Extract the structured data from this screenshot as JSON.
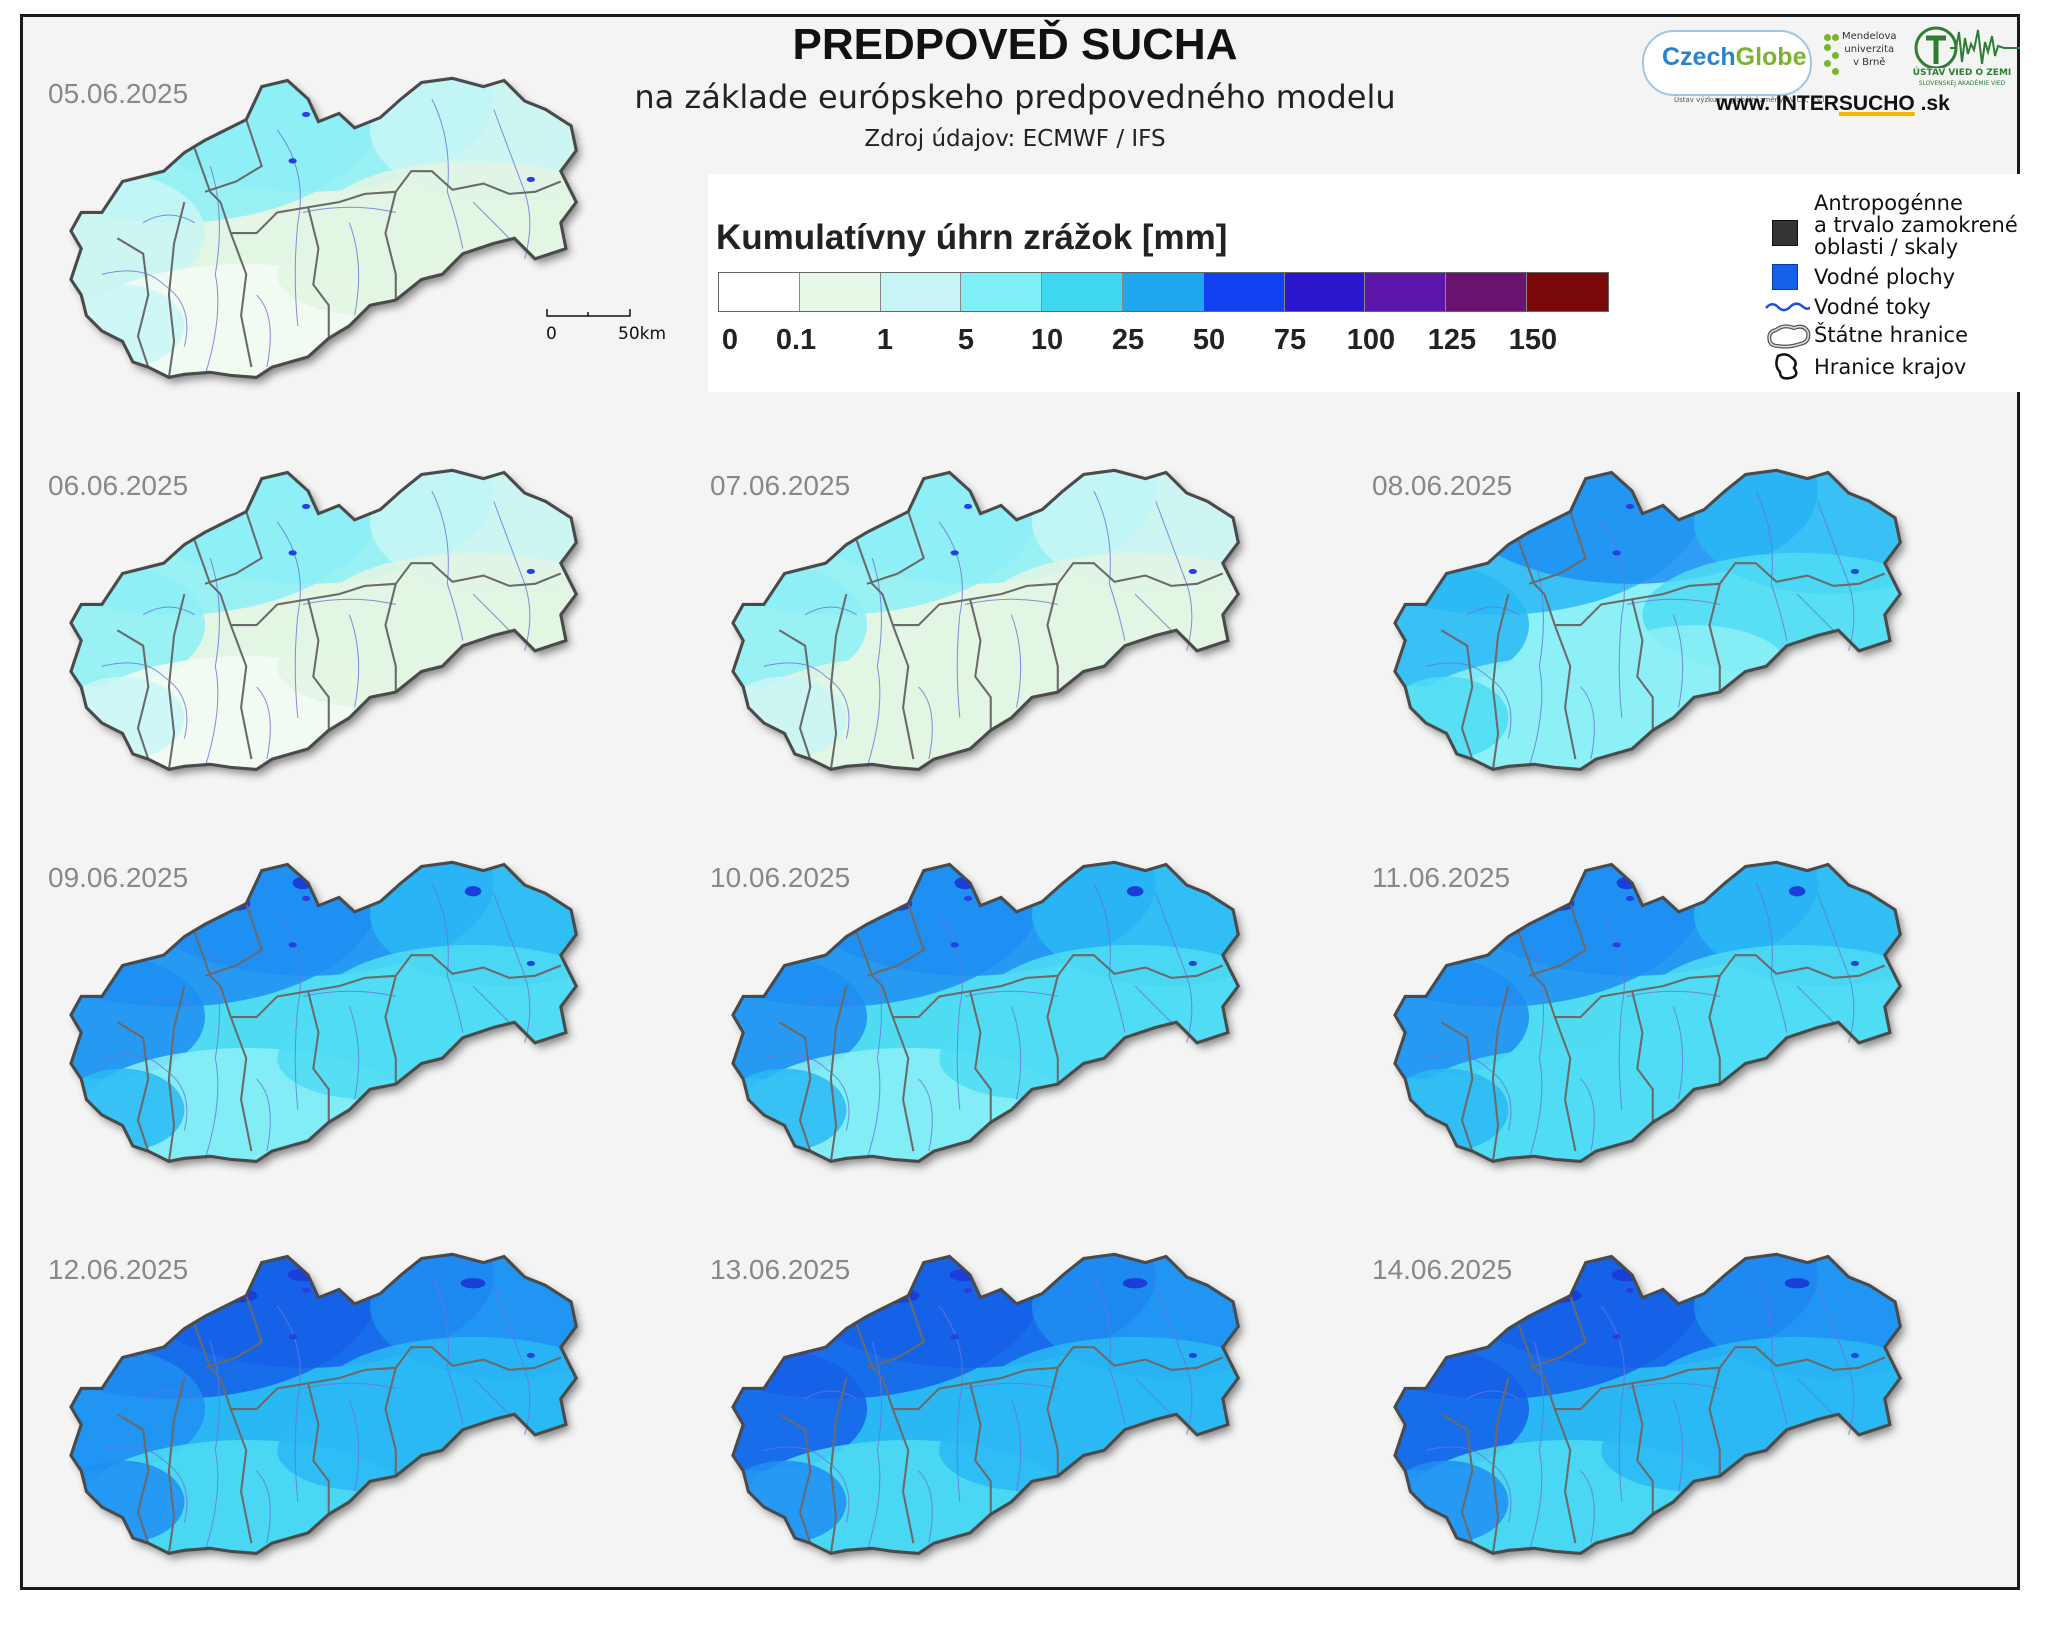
{
  "header": {
    "title": "PREDPOVEĎ SUCHA",
    "subtitle": "na základe európskeho predpovedného modelu",
    "source": "Zdroj údajov: ECMWF / IFS"
  },
  "logos": {
    "czechglobe_a": "Czech",
    "czechglobe_b": "Globe",
    "czechglobe_small": "Ústav výzkumu globální změny AV ČR, v.v.i.",
    "mendel": [
      "Mendelova",
      "univerzita",
      "v Brně"
    ],
    "uvz_name": "ÚSTAV VIED O ZEMI",
    "uvz_sub": "SLOVENSKEJ AKADÉMIE VIED",
    "web_prefix": "www. INTER",
    "web_hl": "SUCHO",
    "web_suffix": " .sk"
  },
  "legend": {
    "title": "Kumulatívny úhrn zrážok [mm]",
    "colors": [
      "#ffffff",
      "#e6f7e6",
      "#c8f6f6",
      "#7ff0f5",
      "#3fd6f0",
      "#1fa8f0",
      "#1040f0",
      "#2a16cc",
      "#5a16a8",
      "#6a1270",
      "#7a0808"
    ],
    "ticks": [
      "0",
      "0.1",
      "1",
      "5",
      "10",
      "25",
      "50",
      "75",
      "100",
      "125",
      "150"
    ]
  },
  "symbols": {
    "anthro": [
      "Antropogénne",
      "a trvalo zamokrené",
      "oblasti / skaly"
    ],
    "water_bodies": "Vodné plochy",
    "rivers": "Vodné toky",
    "state_border": "Štátne hranice",
    "region_border": "Hranice krajov"
  },
  "scale": {
    "start": "0",
    "end": "50km"
  },
  "maps": [
    {
      "date": "05.06.2025",
      "intensity": 0.1
    },
    {
      "date": "06.06.2025",
      "intensity": 0.14
    },
    {
      "date": "07.06.2025",
      "intensity": 0.18
    },
    {
      "date": "08.06.2025",
      "intensity": 0.55
    },
    {
      "date": "09.06.2025",
      "intensity": 0.65
    },
    {
      "date": "10.06.2025",
      "intensity": 0.66
    },
    {
      "date": "11.06.2025",
      "intensity": 0.7
    },
    {
      "date": "12.06.2025",
      "intensity": 0.78
    },
    {
      "date": "13.06.2025",
      "intensity": 0.8
    },
    {
      "date": "14.06.2025",
      "intensity": 0.82
    }
  ]
}
